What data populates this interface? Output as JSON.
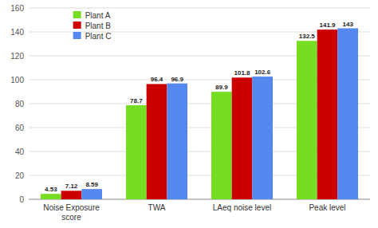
{
  "chart_data": {
    "type": "bar",
    "categories": [
      "Noise Exposure\nscore",
      "TWA",
      "LAeq noise level",
      "Peak level"
    ],
    "series": [
      {
        "name": "Plant A",
        "color": "#77dd22",
        "values": [
          4.53,
          78.7,
          89.9,
          132.5
        ]
      },
      {
        "name": "Plant B",
        "color": "#cc0000",
        "values": [
          7.12,
          96.4,
          101.8,
          141.9
        ]
      },
      {
        "name": "Plant C",
        "color": "#5588ee",
        "values": [
          8.59,
          96.9,
          102.6,
          143
        ]
      }
    ],
    "ylim": [
      0,
      160
    ],
    "yticks": [
      0,
      20,
      40,
      60,
      80,
      100,
      120,
      140,
      160
    ],
    "grid": true,
    "legend": "upper left",
    "data_labels": true
  }
}
